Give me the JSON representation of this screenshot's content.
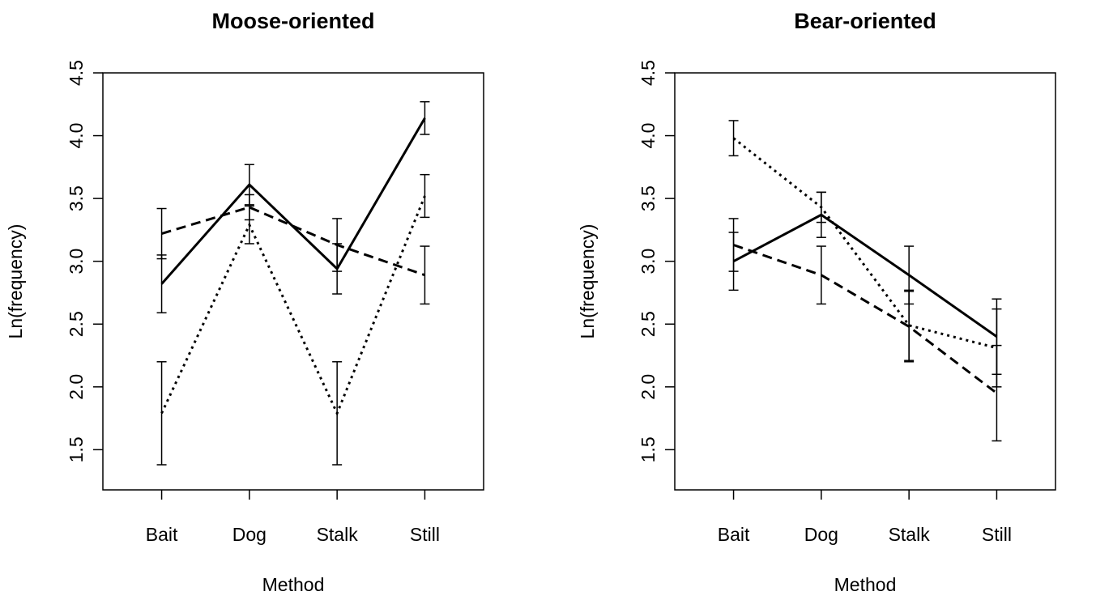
{
  "chart_data": [
    {
      "type": "line",
      "title": "Moose-oriented",
      "x_label": "Method",
      "y_label": "Ln(frequency)",
      "categories": [
        "Bait",
        "Dog",
        "Stalk",
        "Still"
      ],
      "ylim": [
        1.18,
        4.5
      ],
      "yticks": [
        1.5,
        {
          "value": 2,
          "label": "2.0"
        },
        2.5,
        {
          "value": 3,
          "label": "3.0"
        },
        3.5,
        {
          "value": 4,
          "label": "4.0"
        },
        4.5
      ],
      "series": [
        {
          "color": "#000000",
          "dash": "solid",
          "values": [
            2.82,
            3.61,
            2.94,
            4.14
          ],
          "errors": [
            0.23,
            0.16,
            0.2,
            0.13
          ]
        },
        {
          "color": "#000000",
          "dash": "dashed",
          "values": [
            3.22,
            3.43,
            3.13,
            2.89
          ],
          "errors": [
            0.2,
            0.1,
            0.21,
            0.23
          ]
        },
        {
          "color": "#000000",
          "dash": "dotted",
          "values": [
            1.79,
            3.29,
            1.79,
            3.52
          ],
          "errors": [
            0.41,
            0.15,
            0.41,
            0.17
          ]
        }
      ]
    },
    {
      "type": "line",
      "title": "Bear-oriented",
      "x_label": "Method",
      "y_label": "Ln(frequency)",
      "categories": [
        "Bait",
        "Dog",
        "Stalk",
        "Still"
      ],
      "ylim": [
        1.18,
        4.5
      ],
      "yticks": [
        1.5,
        {
          "value": 2,
          "label": "2.0"
        },
        2.5,
        {
          "value": 3,
          "label": "3.0"
        },
        3.5,
        {
          "value": 4,
          "label": "4.0"
        },
        4.5
      ],
      "series": [
        {
          "color": "#000000",
          "dash": "solid",
          "values": [
            3.0,
            3.37,
            2.89,
            2.4
          ],
          "errors": [
            0.23,
            0.18,
            0.23,
            0.3
          ]
        },
        {
          "color": "#000000",
          "dash": "dashed",
          "values": [
            3.13,
            2.89,
            2.48,
            1.95
          ],
          "errors": [
            0.21,
            0.23,
            0.28,
            0.38
          ]
        },
        {
          "color": "#000000",
          "dash": "dotted",
          "values": [
            3.98,
            3.43,
            2.49,
            2.31
          ],
          "errors": [
            0.14,
            0.12,
            0.28,
            0.31
          ]
        }
      ]
    }
  ]
}
